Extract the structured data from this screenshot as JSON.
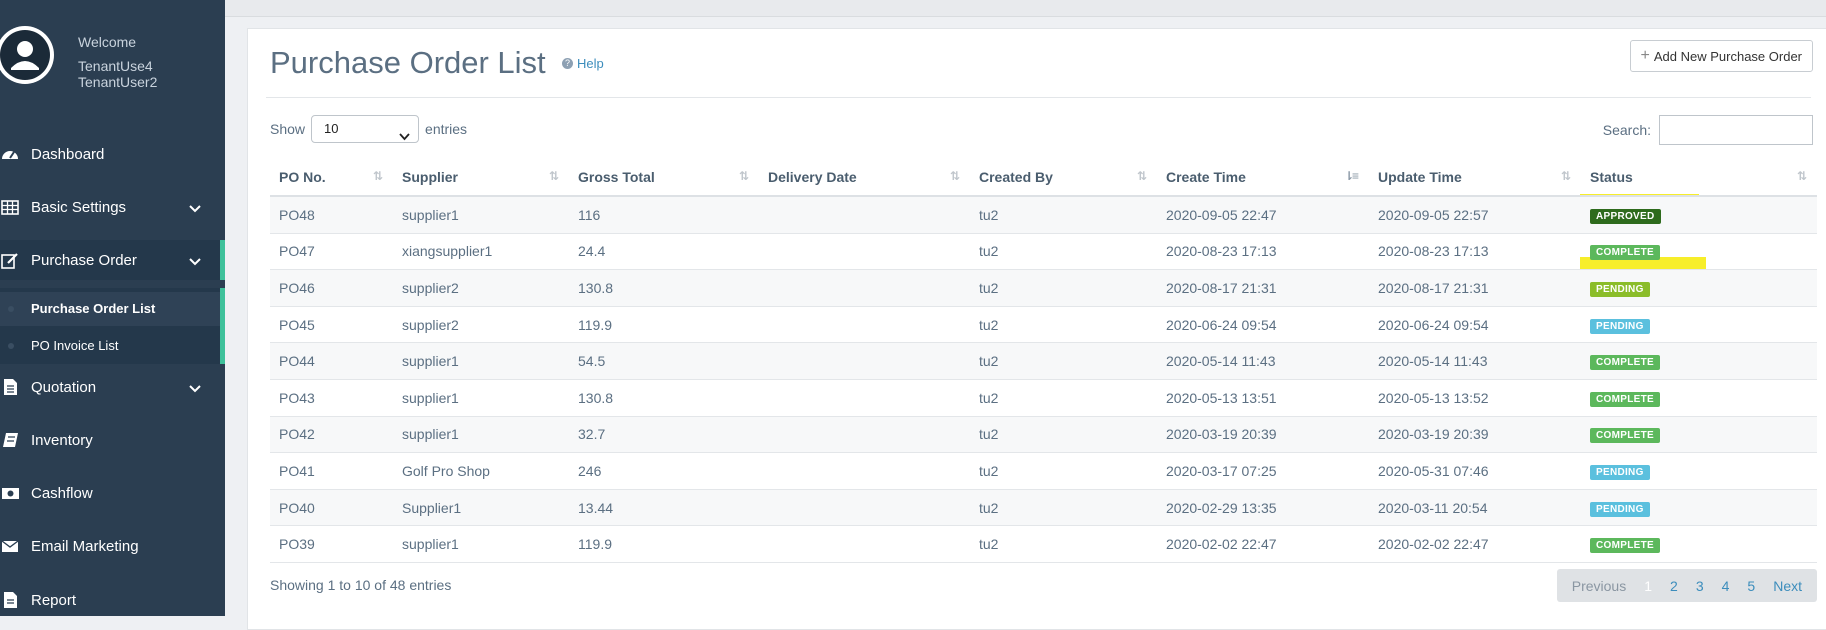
{
  "profile": {
    "welcome": "Welcome",
    "line1": "TenantUse4",
    "line2": "TenantUser2"
  },
  "nav": [
    {
      "label": "Dashboard",
      "icon": "dashboard-icon"
    },
    {
      "label": "Basic Settings",
      "icon": "table-icon"
    },
    {
      "label": "Purchase Order",
      "icon": "edit-icon"
    },
    {
      "label": "Quotation",
      "icon": "document-icon"
    },
    {
      "label": "Inventory",
      "icon": "book-icon"
    },
    {
      "label": "Cashflow",
      "icon": "money-icon"
    },
    {
      "label": "Email Marketing",
      "icon": "envelope-icon"
    },
    {
      "label": "Report",
      "icon": "file-icon"
    }
  ],
  "submenu": [
    {
      "label": "Purchase Order List"
    },
    {
      "label": "PO Invoice List"
    }
  ],
  "page": {
    "title": "Purchase Order List",
    "help": "Help",
    "add_button": "Add New Purchase Order",
    "show_label": "Show",
    "entries_label": "entries",
    "page_size": "10",
    "search_label": "Search:",
    "info": "Showing 1 to 10 of 48 entries"
  },
  "table": {
    "headers": [
      "PO No.",
      "Supplier",
      "Gross Total",
      "Delivery Date",
      "Created By",
      "Create Time",
      "Update Time",
      "Status"
    ],
    "rows": [
      [
        "PO48",
        "supplier1",
        "116",
        "",
        "tu2",
        "2020-09-05 22:47",
        "2020-09-05 22:57",
        "APPROVED"
      ],
      [
        "PO47",
        "xiangsupplier1",
        "24.4",
        "",
        "tu2",
        "2020-08-23 17:13",
        "2020-08-23 17:13",
        "COMPLETE"
      ],
      [
        "PO46",
        "supplier2",
        "130.8",
        "",
        "tu2",
        "2020-08-17 21:31",
        "2020-08-17 21:31",
        "PENDING"
      ],
      [
        "PO45",
        "supplier2",
        "119.9",
        "",
        "tu2",
        "2020-06-24 09:54",
        "2020-06-24 09:54",
        "PENDING"
      ],
      [
        "PO44",
        "supplier1",
        "54.5",
        "",
        "tu2",
        "2020-05-14 11:43",
        "2020-05-14 11:43",
        "COMPLETE"
      ],
      [
        "PO43",
        "supplier1",
        "130.8",
        "",
        "tu2",
        "2020-05-13 13:51",
        "2020-05-13 13:52",
        "COMPLETE"
      ],
      [
        "PO42",
        "supplier1",
        "32.7",
        "",
        "tu2",
        "2020-03-19 20:39",
        "2020-03-19 20:39",
        "COMPLETE"
      ],
      [
        "PO41",
        "Golf Pro Shop",
        "246",
        "",
        "tu2",
        "2020-03-17 07:25",
        "2020-05-31 07:46",
        "PENDING"
      ],
      [
        "PO40",
        "Supplier1",
        "13.44",
        "",
        "tu2",
        "2020-02-29 13:35",
        "2020-03-11 20:54",
        "PENDING"
      ],
      [
        "PO39",
        "supplier1",
        "119.9",
        "",
        "tu2",
        "2020-02-02 22:47",
        "2020-02-02 22:47",
        "COMPLETE"
      ]
    ]
  },
  "pagination": {
    "previous": "Previous",
    "pages": [
      "1",
      "2",
      "3",
      "4",
      "5"
    ],
    "next": "Next"
  },
  "colors": {
    "sidebar": "#2b3e51",
    "accent": "#3ec19a",
    "complete": "#5cb85c",
    "pending": "#5bc0de",
    "approved": "#2e6b1d",
    "highlight": "#f7ee2a"
  }
}
